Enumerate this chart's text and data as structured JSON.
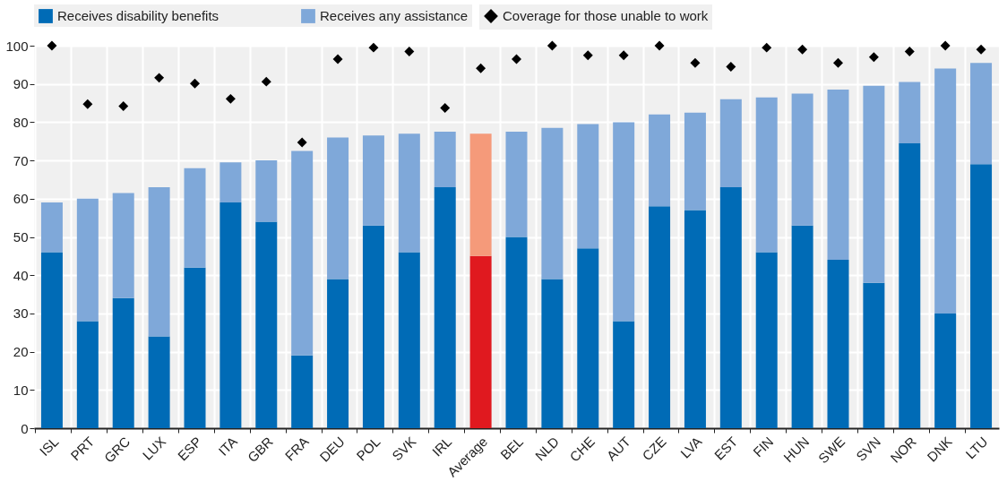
{
  "chart_data": {
    "type": "bar",
    "stacked": true,
    "categories": [
      "ISL",
      "PRT",
      "GRC",
      "LUX",
      "ESP",
      "ITA",
      "GBR",
      "FRA",
      "DEU",
      "POL",
      "SVK",
      "IRL",
      "Average",
      "BEL",
      "NLD",
      "CHE",
      "AUT",
      "CZE",
      "LVA",
      "EST",
      "FIN",
      "HUN",
      "SWE",
      "SVN",
      "NOR",
      "DNK",
      "LTU"
    ],
    "series": [
      {
        "name": "Receives disability benefits",
        "color": "#006bb6",
        "colors": [
          "#006bb6",
          "#006bb6",
          "#006bb6",
          "#006bb6",
          "#006bb6",
          "#006bb6",
          "#006bb6",
          "#006bb6",
          "#006bb6",
          "#006bb6",
          "#006bb6",
          "#006bb6",
          "#e0191f",
          "#006bb6",
          "#006bb6",
          "#006bb6",
          "#006bb6",
          "#006bb6",
          "#006bb6",
          "#006bb6",
          "#006bb6",
          "#006bb6",
          "#006bb6",
          "#006bb6",
          "#006bb6",
          "#006bb6",
          "#006bb6"
        ],
        "values": [
          46,
          28,
          34,
          24,
          42,
          59,
          54,
          19,
          39,
          53,
          46,
          63,
          45,
          50,
          39,
          47,
          28,
          58,
          57,
          63,
          46,
          53,
          44,
          38,
          74.5,
          30,
          69
        ]
      },
      {
        "name": "Receives any assistance",
        "color": "#7fa8d9",
        "colors": [
          "#7fa8d9",
          "#7fa8d9",
          "#7fa8d9",
          "#7fa8d9",
          "#7fa8d9",
          "#7fa8d9",
          "#7fa8d9",
          "#7fa8d9",
          "#7fa8d9",
          "#7fa8d9",
          "#7fa8d9",
          "#7fa8d9",
          "#f59a7a",
          "#7fa8d9",
          "#7fa8d9",
          "#7fa8d9",
          "#7fa8d9",
          "#7fa8d9",
          "#7fa8d9",
          "#7fa8d9",
          "#7fa8d9",
          "#7fa8d9",
          "#7fa8d9",
          "#7fa8d9",
          "#7fa8d9",
          "#7fa8d9",
          "#7fa8d9"
        ],
        "values": [
          13,
          32,
          27.5,
          39,
          26,
          10.5,
          16,
          53.5,
          37,
          23.5,
          31,
          14.5,
          32,
          27.5,
          39.5,
          32.5,
          52,
          24,
          25.5,
          23,
          40.5,
          34.5,
          44.5,
          51.5,
          16,
          64,
          26.5
        ]
      },
      {
        "name": "Coverage for those unable to work",
        "type": "scatter",
        "marker": "diamond",
        "color": "#000000",
        "values": [
          100,
          84.7,
          84.2,
          91.6,
          90.1,
          86.1,
          90.6,
          74.7,
          96.5,
          99.5,
          98.5,
          83.7,
          94.1,
          96.5,
          100,
          97.5,
          97.5,
          100,
          95.5,
          94.5,
          99.5,
          99,
          95.5,
          97,
          98.5,
          100,
          99
        ]
      }
    ],
    "ylim": [
      0,
      100
    ],
    "yticks": [
      0,
      10,
      20,
      30,
      40,
      50,
      60,
      70,
      80,
      90,
      100
    ],
    "grid": true,
    "legend": "top"
  }
}
